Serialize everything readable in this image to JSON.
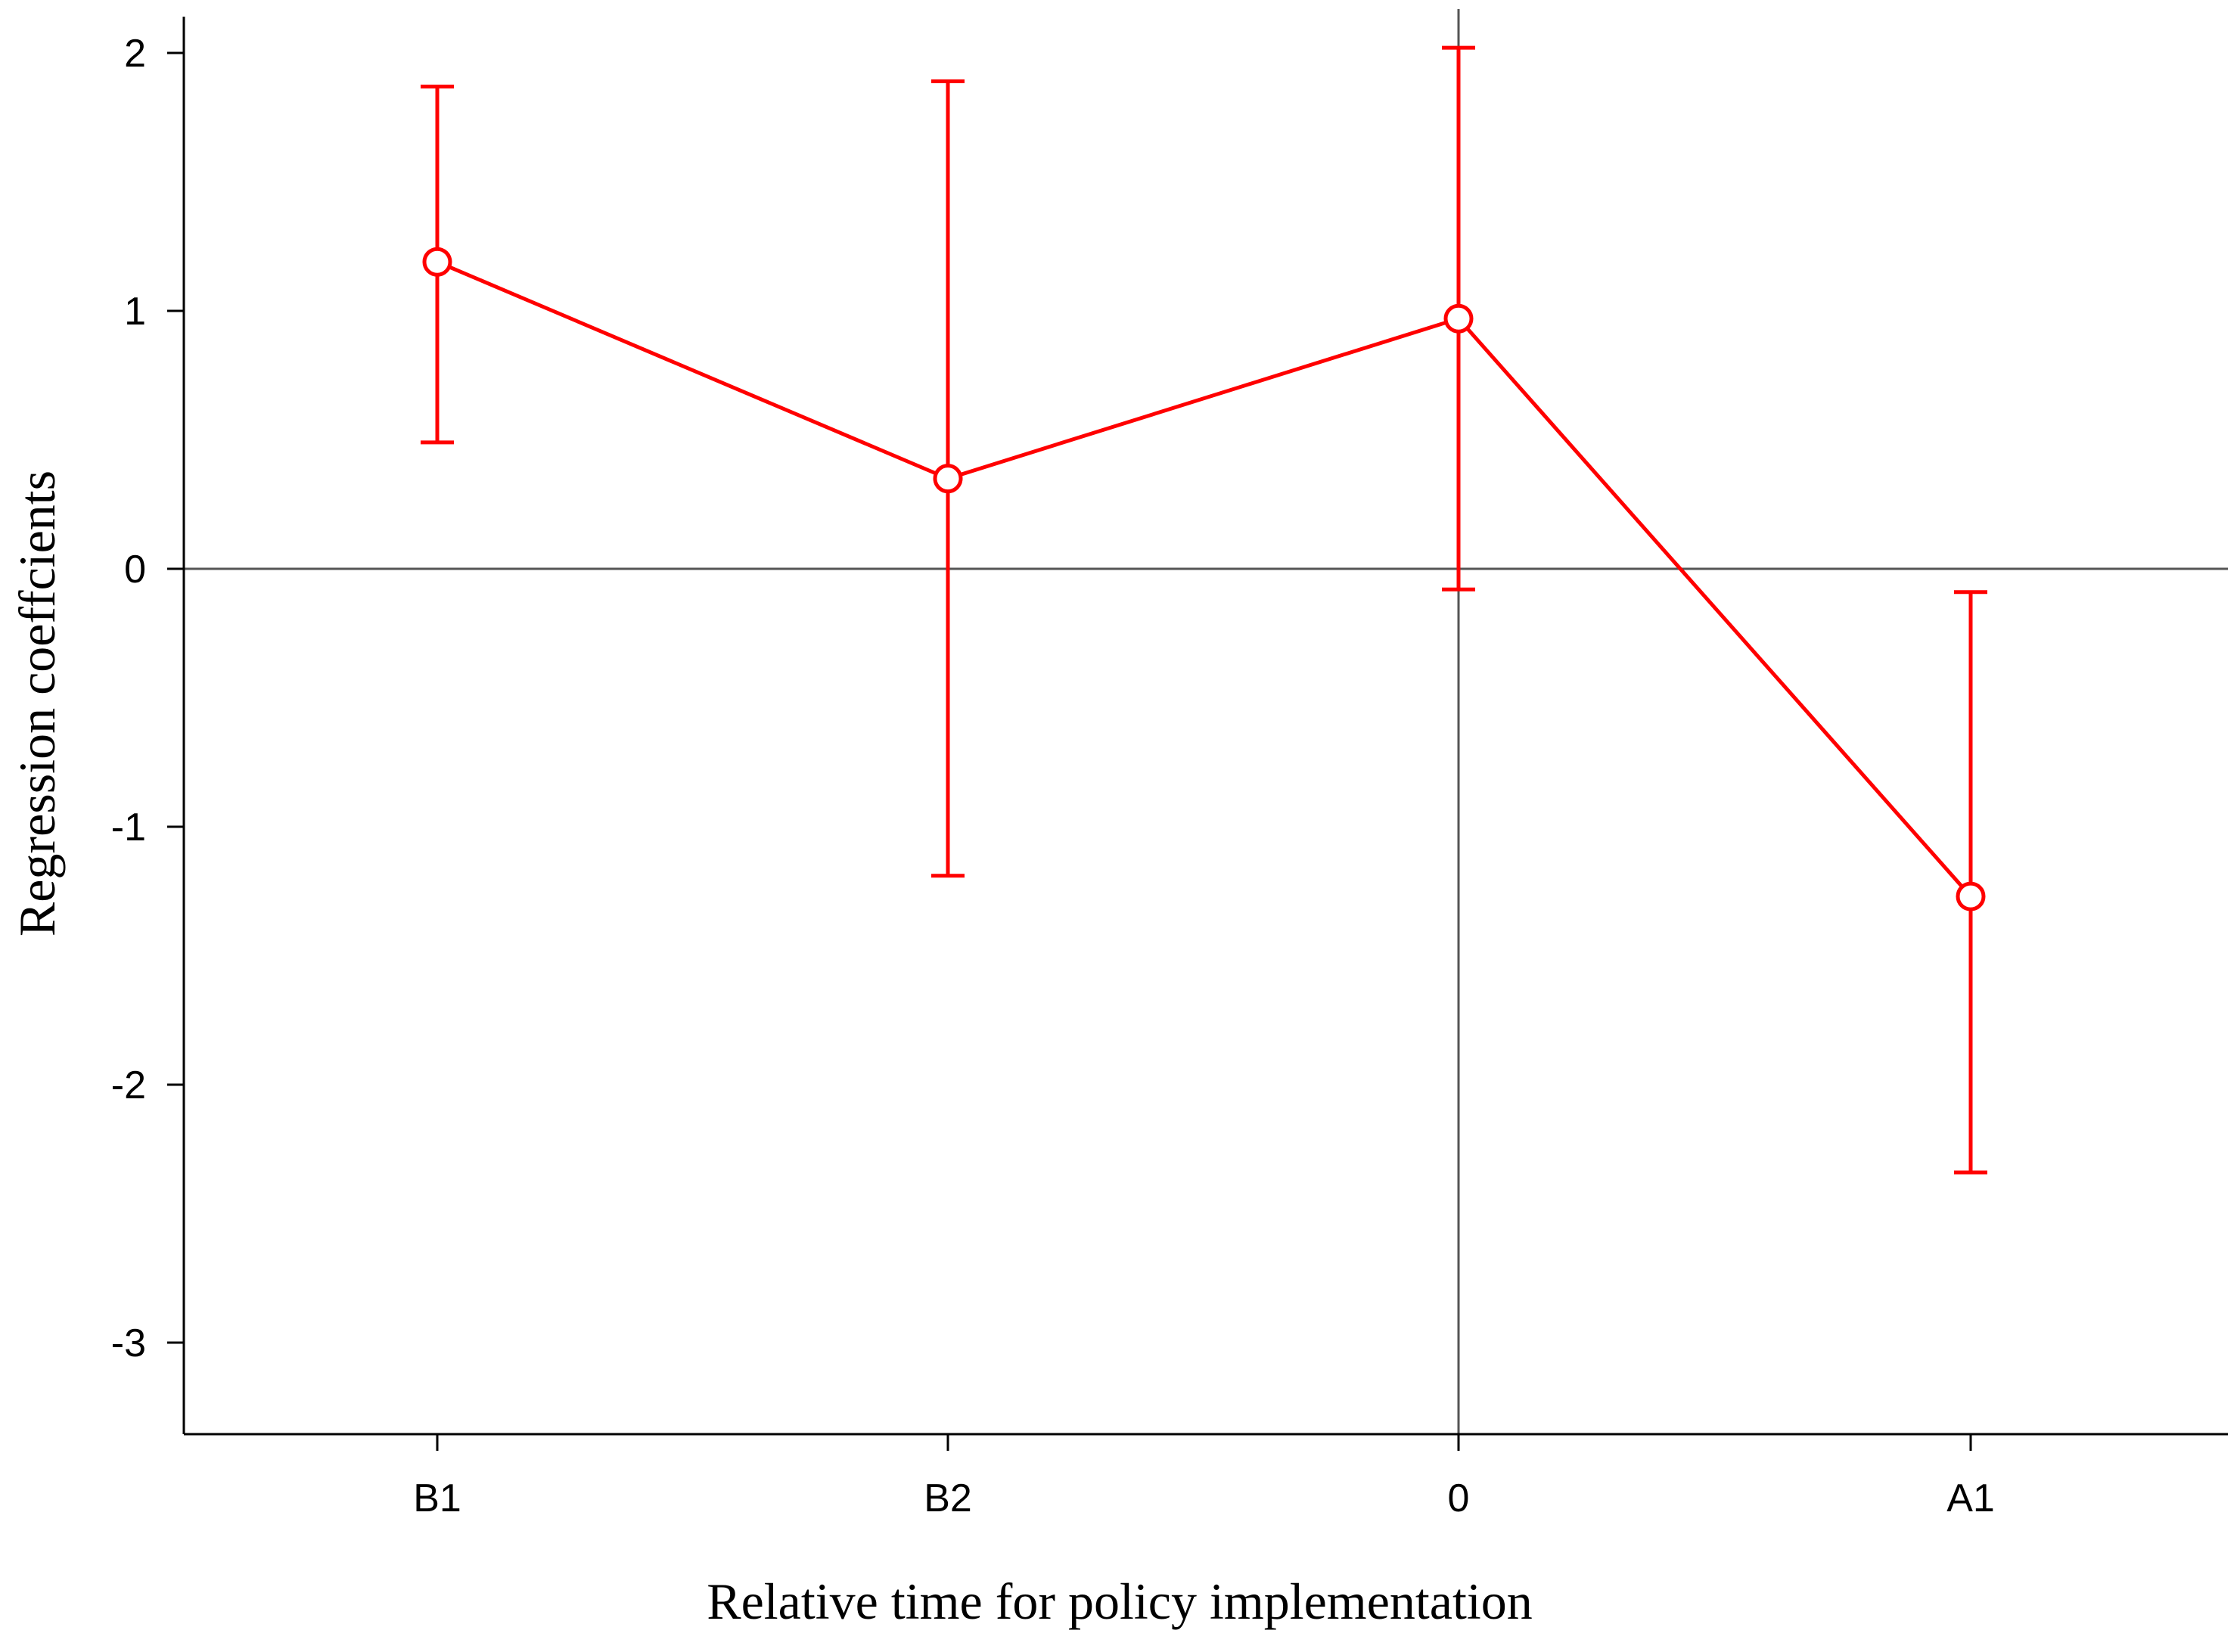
{
  "chart_data": {
    "type": "line",
    "title": "",
    "xlabel": "Relative time for policy implementation",
    "ylabel": "Regression coeffcients",
    "categories": [
      "B1",
      "B2",
      "0",
      "A1"
    ],
    "series": [
      {
        "values": [
          1.19,
          0.35,
          0.97,
          -1.27
        ],
        "ci_lower": [
          0.49,
          -1.19,
          -0.08,
          -2.34
        ],
        "ci_upper": [
          1.87,
          1.89,
          2.02,
          -0.09
        ]
      }
    ],
    "ylim": [
      -3.37,
      2.15
    ],
    "yticks": [
      "2",
      "1",
      "0",
      "-1",
      "-2",
      "-3"
    ],
    "reference_lines": {
      "horizontal_at": 0,
      "vertical_at_category": "0"
    },
    "grid": false,
    "legend": "none",
    "colors": {
      "series": "#ff0000",
      "axes": "#000000",
      "reference": "#555555"
    }
  }
}
